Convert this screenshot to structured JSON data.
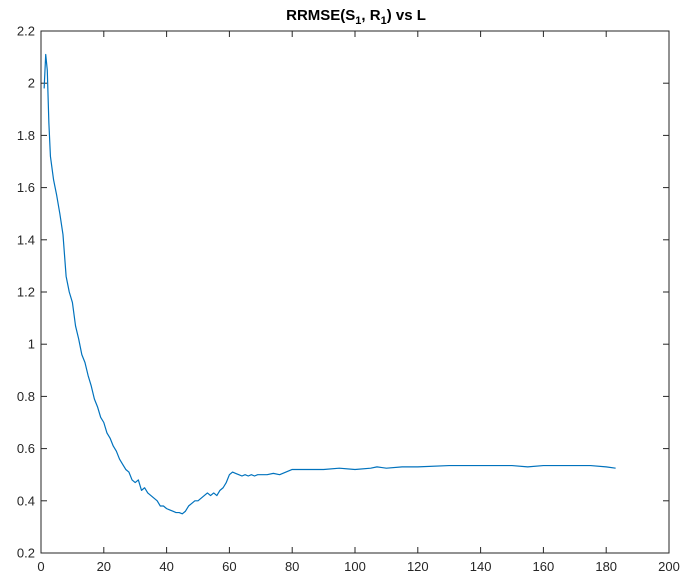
{
  "chart_data": {
    "type": "line",
    "title": {
      "main": "RRMSE(S",
      "sub1": "1",
      "mid": ", R",
      "sub2": "1",
      "end": ") vs L"
    },
    "xlabel": "",
    "ylabel": "",
    "xlim": [
      0,
      200
    ],
    "ylim": [
      0.2,
      2.2
    ],
    "xticks": [
      "0",
      "20",
      "40",
      "60",
      "80",
      "100",
      "120",
      "140",
      "160",
      "180",
      "200"
    ],
    "yticks": [
      "0.2",
      "0.4",
      "0.6",
      "0.8",
      "1",
      "1.2",
      "1.4",
      "1.6",
      "1.8",
      "2",
      "2.2"
    ],
    "grid": false,
    "line_color": "#0072bd",
    "series": [
      {
        "x": [
          1,
          1.5,
          2,
          2.5,
          3,
          4,
          5,
          6,
          7,
          8,
          9,
          10,
          11,
          12,
          13,
          14,
          15,
          16,
          17,
          18,
          19,
          20,
          21,
          22,
          23,
          24,
          25,
          26,
          27,
          28,
          29,
          30,
          31,
          32,
          33,
          34,
          35,
          36,
          37,
          38,
          39,
          40,
          41,
          42,
          43,
          44,
          45,
          46,
          47,
          48,
          49,
          50,
          51,
          52,
          53,
          54,
          55,
          56,
          57,
          58,
          59,
          60,
          61,
          62,
          63,
          64,
          65,
          66,
          67,
          68,
          69,
          70,
          72,
          74,
          76,
          78,
          80,
          85,
          90,
          95,
          100,
          105,
          107,
          110,
          115,
          120,
          130,
          140,
          150,
          155,
          160,
          165,
          170,
          175,
          180,
          183
        ],
        "y": [
          1.98,
          2.11,
          2.05,
          1.85,
          1.72,
          1.63,
          1.57,
          1.5,
          1.42,
          1.26,
          1.2,
          1.16,
          1.07,
          1.02,
          0.96,
          0.93,
          0.88,
          0.84,
          0.79,
          0.76,
          0.72,
          0.7,
          0.66,
          0.64,
          0.61,
          0.59,
          0.56,
          0.54,
          0.52,
          0.51,
          0.48,
          0.47,
          0.48,
          0.44,
          0.45,
          0.43,
          0.42,
          0.41,
          0.4,
          0.38,
          0.38,
          0.37,
          0.365,
          0.36,
          0.355,
          0.355,
          0.35,
          0.36,
          0.38,
          0.39,
          0.4,
          0.4,
          0.41,
          0.42,
          0.43,
          0.42,
          0.43,
          0.42,
          0.44,
          0.45,
          0.47,
          0.5,
          0.51,
          0.505,
          0.5,
          0.495,
          0.5,
          0.495,
          0.5,
          0.495,
          0.5,
          0.5,
          0.5,
          0.505,
          0.5,
          0.51,
          0.52,
          0.52,
          0.52,
          0.525,
          0.52,
          0.525,
          0.53,
          0.525,
          0.53,
          0.53,
          0.535,
          0.535,
          0.535,
          0.53,
          0.535,
          0.535,
          0.535,
          0.535,
          0.53,
          0.525
        ]
      }
    ]
  }
}
